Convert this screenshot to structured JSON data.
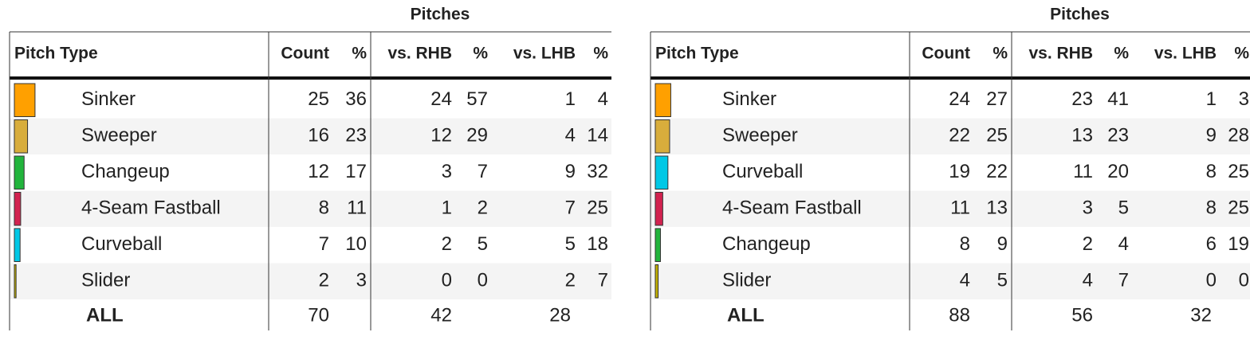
{
  "tables": [
    {
      "title": "Pitches",
      "columns": [
        "Pitch Type",
        "Count",
        "%",
        "vs. RHB",
        "%",
        "vs. LHB",
        "%"
      ],
      "rows": [
        {
          "pitch_type": "Sinker",
          "color": "#ffa000",
          "count": 25,
          "pct": 36,
          "vs_rhb": 24,
          "rhb_pct": 57,
          "vs_lhb": 1,
          "lhb_pct": 4
        },
        {
          "pitch_type": "Sweeper",
          "color": "#d8ad3c",
          "count": 16,
          "pct": 23,
          "vs_rhb": 12,
          "rhb_pct": 29,
          "vs_lhb": 4,
          "lhb_pct": 14
        },
        {
          "pitch_type": "Changeup",
          "color": "#22b43c",
          "count": 12,
          "pct": 17,
          "vs_rhb": 3,
          "rhb_pct": 7,
          "vs_lhb": 9,
          "lhb_pct": 32
        },
        {
          "pitch_type": "4-Seam Fastball",
          "color": "#d2224f",
          "count": 8,
          "pct": 11,
          "vs_rhb": 1,
          "rhb_pct": 2,
          "vs_lhb": 7,
          "lhb_pct": 25
        },
        {
          "pitch_type": "Curveball",
          "color": "#00c8e6",
          "count": 7,
          "pct": 10,
          "vs_rhb": 2,
          "rhb_pct": 5,
          "vs_lhb": 5,
          "lhb_pct": 18
        },
        {
          "pitch_type": "Slider",
          "color": "#c2b000",
          "count": 2,
          "pct": 3,
          "vs_rhb": 0,
          "rhb_pct": 0,
          "vs_lhb": 2,
          "lhb_pct": 7
        }
      ],
      "total": {
        "label": "ALL",
        "count": 70,
        "vs_rhb": 42,
        "vs_lhb": 28
      }
    },
    {
      "title": "Pitches",
      "columns": [
        "Pitch Type",
        "Count",
        "%",
        "vs. RHB",
        "%",
        "vs. LHB",
        "%"
      ],
      "rows": [
        {
          "pitch_type": "Sinker",
          "color": "#ffa000",
          "count": 24,
          "pct": 27,
          "vs_rhb": 23,
          "rhb_pct": 41,
          "vs_lhb": 1,
          "lhb_pct": 3
        },
        {
          "pitch_type": "Sweeper",
          "color": "#d8ad3c",
          "count": 22,
          "pct": 25,
          "vs_rhb": 13,
          "rhb_pct": 23,
          "vs_lhb": 9,
          "lhb_pct": 28
        },
        {
          "pitch_type": "Curveball",
          "color": "#00c8e6",
          "count": 19,
          "pct": 22,
          "vs_rhb": 11,
          "rhb_pct": 20,
          "vs_lhb": 8,
          "lhb_pct": 25
        },
        {
          "pitch_type": "4-Seam Fastball",
          "color": "#d2224f",
          "count": 11,
          "pct": 13,
          "vs_rhb": 3,
          "rhb_pct": 5,
          "vs_lhb": 8,
          "lhb_pct": 25
        },
        {
          "pitch_type": "Changeup",
          "color": "#22b43c",
          "count": 8,
          "pct": 9,
          "vs_rhb": 2,
          "rhb_pct": 4,
          "vs_lhb": 6,
          "lhb_pct": 19
        },
        {
          "pitch_type": "Slider",
          "color": "#c2b000",
          "count": 4,
          "pct": 5,
          "vs_rhb": 4,
          "rhb_pct": 7,
          "vs_lhb": 0,
          "lhb_pct": 0
        }
      ],
      "total": {
        "label": "ALL",
        "count": 88,
        "vs_rhb": 56,
        "vs_lhb": 32
      }
    }
  ]
}
